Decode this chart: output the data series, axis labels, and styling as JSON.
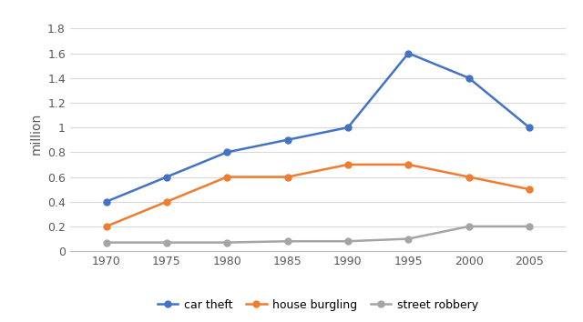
{
  "years": [
    1970,
    1975,
    1980,
    1985,
    1990,
    1995,
    2000,
    2005
  ],
  "car_theft": [
    0.4,
    0.6,
    0.8,
    0.9,
    1.0,
    1.6,
    1.4,
    1.0
  ],
  "house_burgling": [
    0.2,
    0.4,
    0.6,
    0.6,
    0.7,
    0.7,
    0.6,
    0.5
  ],
  "street_robbery": [
    0.07,
    0.07,
    0.07,
    0.08,
    0.08,
    0.1,
    0.2,
    0.2
  ],
  "car_theft_color": "#4472C4",
  "house_burgling_color": "#ED7D31",
  "street_robbery_color": "#A5A5A5",
  "ylabel": "million",
  "ylim": [
    0,
    1.9
  ],
  "yticks": [
    0,
    0.2,
    0.4,
    0.6,
    0.8,
    1.0,
    1.2,
    1.4,
    1.6,
    1.8
  ],
  "ytick_labels": [
    "0",
    "0.2",
    "0.4",
    "0.6",
    "0.8",
    "1",
    "1.2",
    "1.4",
    "1.6",
    "1.8"
  ],
  "legend_labels": [
    "car theft",
    "house burgling",
    "street robbery"
  ],
  "background_color": "#FFFFFF",
  "grid_color": "#D9D9D9",
  "xlim_left": 1967,
  "xlim_right": 2008,
  "marker_size": 5,
  "line_width": 1.8
}
